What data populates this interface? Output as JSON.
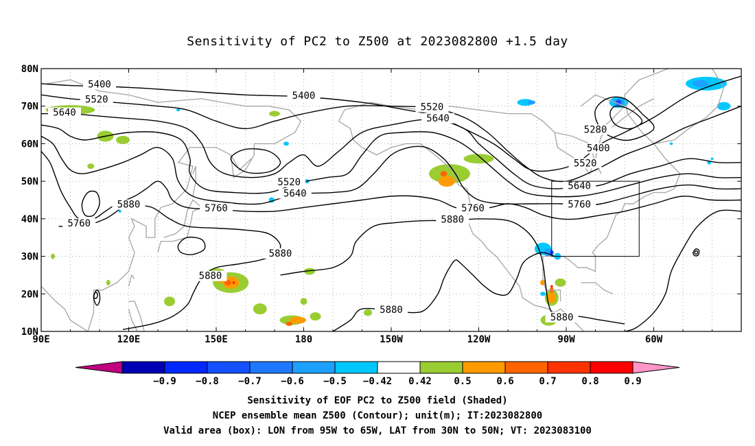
{
  "title": "Sensitivity of PC2 to Z500 at 2023082800 +1.5 day",
  "lat_ticks": [
    "80N",
    "70N",
    "60N",
    "50N",
    "40N",
    "30N",
    "20N",
    "10N"
  ],
  "lon_ticks": [
    "90E",
    "120E",
    "150E",
    "180",
    "150W",
    "120W",
    "90W",
    "60W"
  ],
  "contour_labels": [
    {
      "text": "5400",
      "lon": 110,
      "lat": 75.5
    },
    {
      "text": "5520",
      "lon": 109,
      "lat": 71.5
    },
    {
      "text": "5640",
      "lon": 98,
      "lat": 68
    },
    {
      "text": "5400",
      "lon": 180,
      "lat": 72.5
    },
    {
      "text": "5520",
      "lon": 224,
      "lat": 69.5
    },
    {
      "text": "5640",
      "lon": 226,
      "lat": 66.5
    },
    {
      "text": "5280",
      "lon": 280,
      "lat": 63.5
    },
    {
      "text": "5400",
      "lon": 281,
      "lat": 58.5
    },
    {
      "text": "5520",
      "lon": 276.5,
      "lat": 54.5
    },
    {
      "text": "5520",
      "lon": 175,
      "lat": 49.5
    },
    {
      "text": "5640",
      "lon": 177,
      "lat": 46.5
    },
    {
      "text": "5640",
      "lon": 274.5,
      "lat": 48.5
    },
    {
      "text": "5760",
      "lon": 274.5,
      "lat": 43.5
    },
    {
      "text": "5880",
      "lon": 120,
      "lat": 43.5
    },
    {
      "text": "5760",
      "lon": 150,
      "lat": 42.5
    },
    {
      "text": "5760",
      "lon": 238,
      "lat": 42.5
    },
    {
      "text": "5880",
      "lon": 231,
      "lat": 39.5
    },
    {
      "text": "5760",
      "lon": 103,
      "lat": 38.5
    },
    {
      "text": "5880",
      "lon": 172,
      "lat": 30.5
    },
    {
      "text": "5880",
      "lon": 148,
      "lat": 24.5
    },
    {
      "text": "5880",
      "lon": 210,
      "lat": 15.5
    },
    {
      "text": "5880",
      "lon": 268.5,
      "lat": 13.5
    }
  ],
  "box": {
    "lon_min": -95,
    "lon_max": -65,
    "lat_min": 30,
    "lat_max": 50
  },
  "colorbar": {
    "labels": [
      "-0.9",
      "-0.8",
      "-0.7",
      "-0.6",
      "-0.5",
      "-0.42",
      "0.42",
      "0.5",
      "0.6",
      "0.7",
      "0.8",
      "0.9"
    ],
    "colors": [
      "#c0007f",
      "#0000b4",
      "#0028ff",
      "#1450ff",
      "#1e78ff",
      "#1ea0ff",
      "#00c8ff",
      "#ffffff",
      "#9acd32",
      "#ff9b00",
      "#ff6400",
      "#ff3200",
      "#ff0000",
      "#ff96c8"
    ]
  },
  "captions": [
    "Sensitivity of EOF PC2 to Z500 field (Shaded)",
    "NCEP ensemble mean Z500 (Contour); unit(m); IT:2023082800",
    "Valid area (box): LON from 95W to 65W, LAT from 30N to 50N; VT: 2023083100"
  ]
}
